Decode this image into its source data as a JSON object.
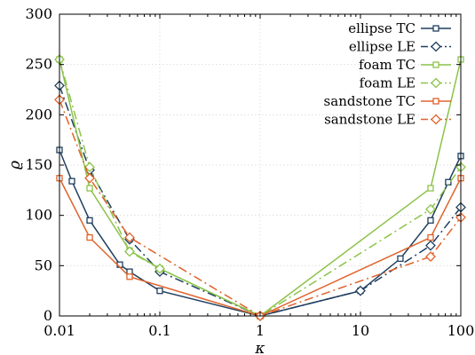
{
  "chart_data": {
    "type": "line",
    "xlabel": "κ",
    "ylabel": "ϱ",
    "xscale": "log",
    "xlim": [
      0.01,
      100
    ],
    "ylim": [
      0,
      300
    ],
    "grid": true,
    "legend_position": "top-right",
    "x_ticks": [
      "0.01",
      "0.1",
      "1",
      "10",
      "100"
    ],
    "y_ticks": [
      "0",
      "50",
      "100",
      "150",
      "200",
      "250",
      "300"
    ],
    "series": [
      {
        "name": "ellipse TC",
        "color": "#1f3f5f",
        "line": "solid",
        "marker": "square",
        "x": [
          0.01,
          0.0133,
          0.02,
          0.04,
          0.05,
          0.1,
          1,
          10,
          25,
          50,
          75,
          100
        ],
        "y": [
          165,
          134,
          95,
          51,
          44,
          25,
          0,
          25,
          57,
          95,
          133,
          159
        ]
      },
      {
        "name": "ellipse LE",
        "color": "#1f3f5f",
        "line": "dashdot",
        "marker": "diamond",
        "x": [
          0.01,
          0.02,
          0.05,
          0.1,
          1,
          10,
          50,
          100
        ],
        "y": [
          229,
          145,
          76,
          44,
          0,
          25,
          70,
          108
        ]
      },
      {
        "name": "foam TC",
        "color": "#8bc34a",
        "line": "solid",
        "marker": "square",
        "x": [
          0.01,
          0.02,
          0.05,
          0.1,
          1,
          50,
          100
        ],
        "y": [
          255,
          127,
          65,
          47,
          0,
          127,
          255
        ]
      },
      {
        "name": "foam LE",
        "color": "#8bc34a",
        "line": "dashdot",
        "marker": "diamond",
        "x": [
          0.01,
          0.02,
          0.05,
          0.1,
          1,
          50,
          100
        ],
        "y": [
          255,
          148,
          64,
          47,
          0,
          106,
          148
        ]
      },
      {
        "name": "sandstone TC",
        "color": "#e0622a",
        "line": "solid",
        "marker": "square",
        "x": [
          0.01,
          0.02,
          0.05,
          1,
          50,
          100
        ],
        "y": [
          137,
          78,
          39,
          0,
          78,
          137
        ]
      },
      {
        "name": "sandstone LE",
        "color": "#e0622a",
        "line": "dashdot",
        "marker": "diamond",
        "x": [
          0.01,
          0.02,
          0.05,
          1,
          50,
          100
        ],
        "y": [
          215,
          137,
          78,
          0,
          59,
          98
        ]
      }
    ]
  }
}
